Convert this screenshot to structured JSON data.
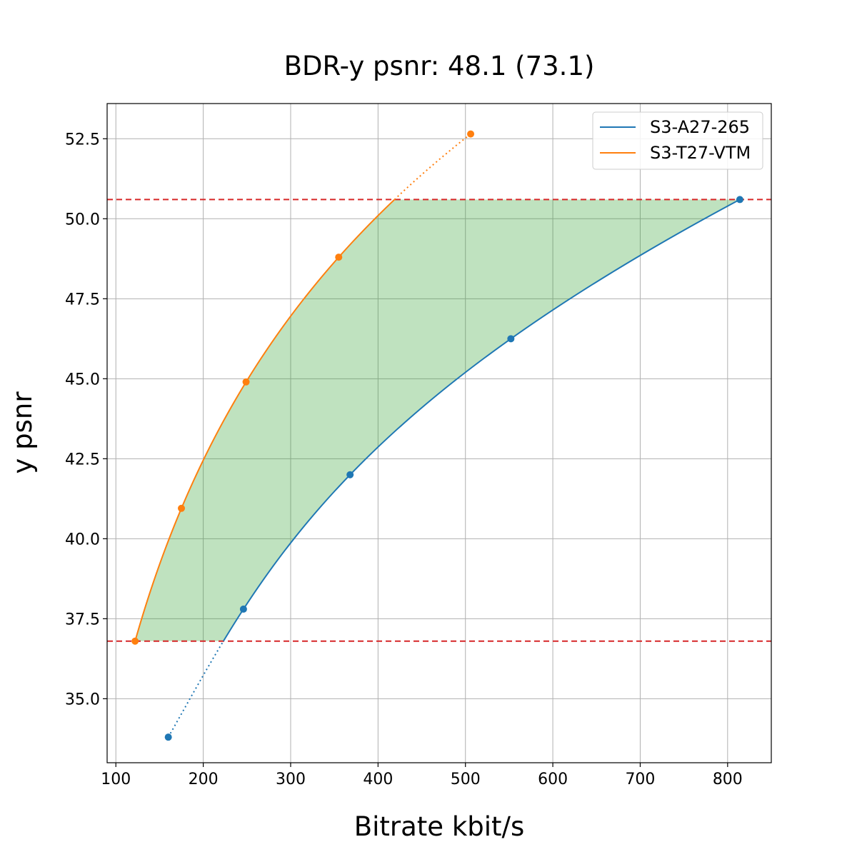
{
  "chart_data": {
    "type": "line",
    "title": "BDR-y psnr: 48.1 (73.1)",
    "xlabel": "Bitrate kbit/s",
    "ylabel": "y psnr",
    "xlim": [
      90,
      850
    ],
    "ylim": [
      33.0,
      53.6
    ],
    "x_ticks": [
      100,
      200,
      300,
      400,
      500,
      600,
      700,
      800
    ],
    "y_ticks": [
      35.0,
      37.5,
      40.0,
      42.5,
      45.0,
      47.5,
      50.0,
      52.5
    ],
    "x_tick_labels": [
      "100",
      "200",
      "300",
      "400",
      "500",
      "600",
      "700",
      "800"
    ],
    "y_tick_labels": [
      "35.0",
      "37.5",
      "40.0",
      "42.5",
      "45.0",
      "47.5",
      "50.0",
      "52.5"
    ],
    "grid": true,
    "legend_position": "top-right",
    "reference_lines": {
      "y": [
        36.8,
        50.6
      ],
      "color": "#d62728",
      "style": "dashed"
    },
    "fill_between": {
      "ymin": 36.8,
      "ymax": 50.6,
      "color": "#2ca02c"
    },
    "series": [
      {
        "name": "S3-A27-265",
        "color": "#1f77b4",
        "points": [
          {
            "x": 160,
            "y": 33.8
          },
          {
            "x": 246,
            "y": 37.8
          },
          {
            "x": 368,
            "y": 42.0
          },
          {
            "x": 552,
            "y": 46.25
          },
          {
            "x": 814,
            "y": 50.6
          }
        ]
      },
      {
        "name": "S3-T27-VTM",
        "color": "#ff7f0e",
        "points": [
          {
            "x": 122,
            "y": 36.8
          },
          {
            "x": 175,
            "y": 40.95
          },
          {
            "x": 249,
            "y": 44.9
          },
          {
            "x": 355,
            "y": 48.8
          },
          {
            "x": 506,
            "y": 52.65
          }
        ]
      }
    ]
  }
}
